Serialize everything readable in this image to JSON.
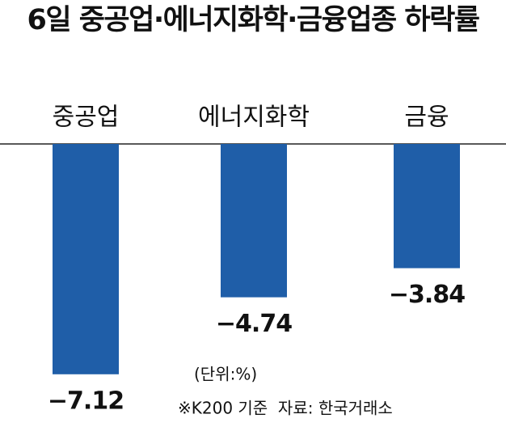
{
  "chart_data": {
    "type": "bar",
    "title": "6일 중공업·에너지화학·금융업종 하락률",
    "categories": [
      "중공업",
      "에너지화학",
      "금융"
    ],
    "values": [
      -7.12,
      -4.74,
      -3.84
    ],
    "value_labels": [
      "−7.12",
      "−4.74",
      "−3.84"
    ],
    "color": "#1f5ea8",
    "ylim": [
      -8.5,
      0
    ],
    "unit_note": "(단위:%)",
    "source": "※K200 기준  자료: 한국거래소"
  }
}
